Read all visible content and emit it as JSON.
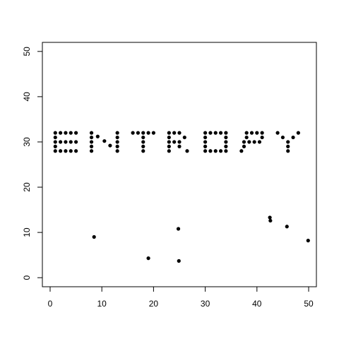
{
  "chart_data": {
    "type": "scatter",
    "title": "",
    "xlabel": "",
    "ylabel": "",
    "xlim": [
      -1.5,
      51.5
    ],
    "ylim": [
      -2,
      52
    ],
    "xticks": [
      0,
      10,
      20,
      30,
      40,
      50
    ],
    "xtick_labels": [
      "0",
      "10",
      "20",
      "30",
      "40",
      "50"
    ],
    "yticks": [
      0,
      10,
      20,
      30,
      40,
      50
    ],
    "ytick_labels": [
      "0",
      "10",
      "20",
      "30",
      "40",
      "50"
    ],
    "grid": false,
    "box": true,
    "point_color": "#000000",
    "series": [
      {
        "points": [
          [
            1,
            32
          ],
          [
            2,
            32
          ],
          [
            3,
            32
          ],
          [
            4,
            32
          ],
          [
            5,
            32
          ],
          [
            1,
            31
          ],
          [
            1,
            30
          ],
          [
            2,
            30
          ],
          [
            3,
            30
          ],
          [
            4,
            30
          ],
          [
            5,
            30
          ],
          [
            1,
            29
          ],
          [
            1,
            28
          ],
          [
            2,
            28
          ],
          [
            3,
            28
          ],
          [
            4,
            28
          ],
          [
            5,
            28
          ],
          [
            8,
            32
          ],
          [
            8,
            31
          ],
          [
            8,
            30
          ],
          [
            8,
            29
          ],
          [
            8,
            28
          ],
          [
            9.2,
            31.2
          ],
          [
            10.5,
            30.2
          ],
          [
            11.6,
            29.2
          ],
          [
            13,
            32
          ],
          [
            13,
            31
          ],
          [
            13,
            30
          ],
          [
            13,
            29
          ],
          [
            13,
            28
          ],
          [
            16,
            32
          ],
          [
            17,
            32
          ],
          [
            18,
            32
          ],
          [
            19,
            32
          ],
          [
            20,
            32
          ],
          [
            18,
            31
          ],
          [
            18,
            30
          ],
          [
            18,
            29
          ],
          [
            18,
            28
          ],
          [
            23,
            32
          ],
          [
            24,
            32
          ],
          [
            25,
            32
          ],
          [
            23,
            31
          ],
          [
            26,
            31
          ],
          [
            23,
            30
          ],
          [
            24,
            30
          ],
          [
            25,
            30
          ],
          [
            23,
            29
          ],
          [
            25,
            29
          ],
          [
            23,
            28
          ],
          [
            26.5,
            28
          ],
          [
            30,
            32
          ],
          [
            31,
            32
          ],
          [
            32,
            32
          ],
          [
            33,
            32
          ],
          [
            34,
            32
          ],
          [
            30,
            31
          ],
          [
            34,
            31
          ],
          [
            30,
            30
          ],
          [
            34,
            30
          ],
          [
            30,
            29
          ],
          [
            34,
            29
          ],
          [
            30,
            28
          ],
          [
            31,
            28
          ],
          [
            32,
            28
          ],
          [
            33,
            28
          ],
          [
            34,
            28
          ],
          [
            38,
            32
          ],
          [
            39,
            32
          ],
          [
            40,
            32
          ],
          [
            41,
            32
          ],
          [
            38,
            31
          ],
          [
            41,
            31
          ],
          [
            37.5,
            30
          ],
          [
            38.5,
            30
          ],
          [
            39.5,
            30
          ],
          [
            40.5,
            30
          ],
          [
            37.5,
            29
          ],
          [
            37,
            28
          ],
          [
            44,
            32
          ],
          [
            48,
            32
          ],
          [
            45,
            31
          ],
          [
            47,
            31
          ],
          [
            46,
            30
          ],
          [
            46,
            29
          ],
          [
            46,
            28
          ]
        ]
      },
      {
        "points": [
          [
            8.5,
            9
          ],
          [
            19,
            4.3
          ],
          [
            24.8,
            10.8
          ],
          [
            24.9,
            3.7
          ],
          [
            42.5,
            13.3
          ],
          [
            42.6,
            12.6
          ],
          [
            45.8,
            11.3
          ],
          [
            49.9,
            8.2
          ]
        ]
      }
    ]
  }
}
